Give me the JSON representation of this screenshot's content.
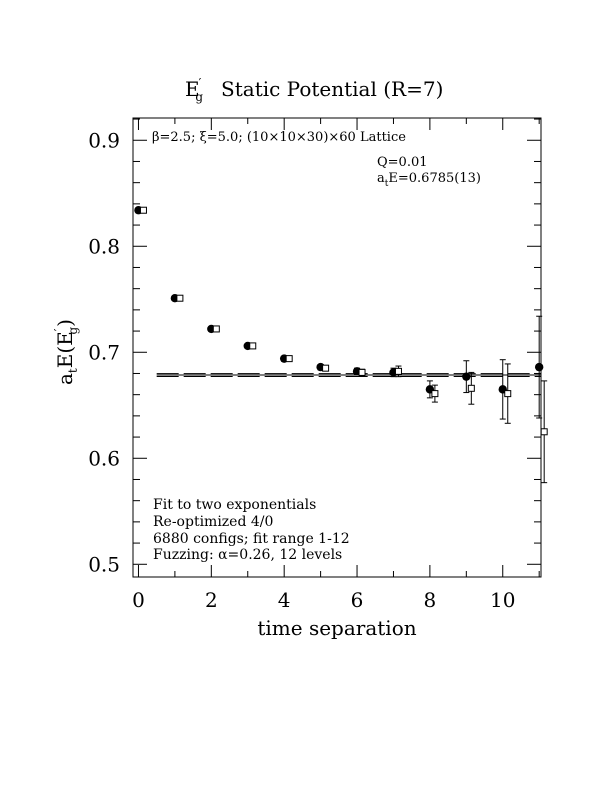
{
  "chart_data": {
    "type": "scatter",
    "title_main": "E",
    "title_sub": "g",
    "title_prime": "′",
    "title_rest": "Static Potential (R=7)",
    "lattice_line": "β=2.5; ξ=5.0; (10×10×30)×60 Lattice",
    "xlabel": "time separation",
    "ylabel_a": "a",
    "ylabel_t": "t",
    "ylabel_E": "E(E",
    "ylabel_prime": "′",
    "ylabel_g": "g",
    "ylabel_close": ")",
    "xlim": [
      -0.15,
      11.05
    ],
    "ylim": [
      0.488,
      0.921
    ],
    "xticks": [
      "0",
      "2",
      "4",
      "6",
      "8",
      "10"
    ],
    "xtick_values": [
      0,
      2,
      4,
      6,
      8,
      10
    ],
    "yticks": [
      "0.5",
      "0.6",
      "0.7",
      "0.8",
      "0.9"
    ],
    "ytick_values": [
      0.5,
      0.6,
      0.7,
      0.8,
      0.9
    ],
    "fit": {
      "Q_text": "Q=0.01",
      "aE_a": "a",
      "aE_t": "t",
      "aE_text": "E=0.6785(13)",
      "value": 0.6785,
      "error": 0.0013,
      "x_range": [
        0.5,
        11.05
      ]
    },
    "notes": [
      "Fit to two exponentials",
      "Re-optimized 4/0",
      "6880 configs; fit range 1-12",
      "Fuzzing: α=0.26, 12 levels"
    ],
    "series": [
      {
        "marker": "filled-circle",
        "points": [
          {
            "x": 0,
            "y": 0.834,
            "err": 0.002
          },
          {
            "x": 1,
            "y": 0.751,
            "err": 0.002
          },
          {
            "x": 2,
            "y": 0.722,
            "err": 0.002
          },
          {
            "x": 3,
            "y": 0.706,
            "err": 0.002
          },
          {
            "x": 4,
            "y": 0.694,
            "err": 0.002
          },
          {
            "x": 5,
            "y": 0.686,
            "err": 0.002
          },
          {
            "x": 6,
            "y": 0.682,
            "err": 0.003
          },
          {
            "x": 7,
            "y": 0.681,
            "err": 0.004
          },
          {
            "x": 8,
            "y": 0.665,
            "err": 0.008
          },
          {
            "x": 9,
            "y": 0.677,
            "err": 0.015
          },
          {
            "x": 10,
            "y": 0.665,
            "err": 0.028
          },
          {
            "x": 11,
            "y": 0.686,
            "err": 0.048
          }
        ]
      },
      {
        "marker": "open-square",
        "points": [
          {
            "x": 0,
            "y": 0.834,
            "err": 0.002
          },
          {
            "x": 1,
            "y": 0.751,
            "err": 0.002
          },
          {
            "x": 2,
            "y": 0.722,
            "err": 0.002
          },
          {
            "x": 3,
            "y": 0.706,
            "err": 0.002
          },
          {
            "x": 4,
            "y": 0.694,
            "err": 0.002
          },
          {
            "x": 5,
            "y": 0.685,
            "err": 0.002
          },
          {
            "x": 6,
            "y": 0.681,
            "err": 0.003
          },
          {
            "x": 7,
            "y": 0.682,
            "err": 0.005
          },
          {
            "x": 8,
            "y": 0.661,
            "err": 0.008
          },
          {
            "x": 9,
            "y": 0.666,
            "err": 0.015
          },
          {
            "x": 10,
            "y": 0.661,
            "err": 0.028
          },
          {
            "x": 11,
            "y": 0.625,
            "err": 0.048
          }
        ]
      }
    ]
  }
}
